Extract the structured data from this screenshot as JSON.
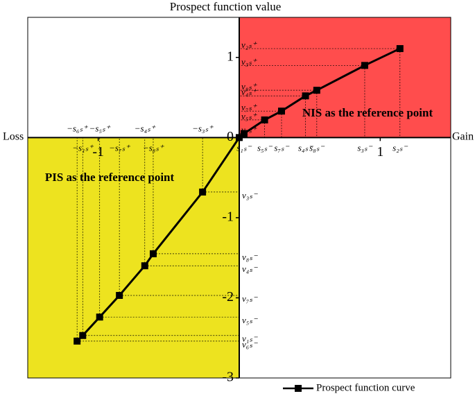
{
  "chart_data": {
    "type": "line",
    "title": "Prospect function value",
    "x_left_label": "Loss",
    "x_right_label": "Gain",
    "gain_region": {
      "text": "NIS as the reference point",
      "color": "#ff4d4d"
    },
    "loss_region": {
      "text": "PIS as the reference point",
      "color": "#ede31f"
    },
    "xlim": [
      -1.5,
      1.5
    ],
    "ylim": [
      -3,
      1.5
    ],
    "xticks": [
      -1,
      1
    ],
    "yticks": [
      -3,
      -2,
      -1,
      0,
      1
    ],
    "series": [
      {
        "name": "Prospect function curve",
        "color": "#000000",
        "x": [
          -1.15,
          -1.11,
          -0.99,
          -0.85,
          -0.67,
          -0.61,
          -0.26,
          0,
          0.034,
          0.18,
          0.3,
          0.47,
          0.55,
          0.89,
          1.14
        ],
        "values": [
          -2.54,
          -2.47,
          -2.24,
          -1.97,
          -1.6,
          -1.45,
          -0.68,
          0,
          0.05,
          0.22,
          0.33,
          0.52,
          0.59,
          0.9,
          1.11
        ],
        "x_labels": [
          "−s₆ₛ⁺",
          "−s₁ₛ⁺",
          "−s₅ₛ⁺",
          "−s₇ₛ⁺",
          "−s₄ₛ⁺",
          "−s₈ₛ⁺",
          "−s₃ₛ⁺",
          null,
          "s₁ₛ⁻",
          "s₅ₛ⁻",
          "s₇ₛ⁻",
          "s₄ₛ⁻",
          "s₈ₛ⁻",
          "s₃ₛ⁻",
          "s₂ₛ⁻"
        ],
        "y_labels": [
          "v₆ₛ⁻",
          "v₁ₛ⁻",
          "v₅ₛ⁻",
          "v₇ₛ⁻",
          "v₄ₛ⁻",
          "v₈ₛ⁻",
          "v₃ₛ⁻",
          null,
          "v₁ₛ⁺",
          "v₅ₛ⁺",
          "v₇ₛ⁺",
          "v₄ₛ⁺",
          "v₈ₛ⁺",
          "v₃ₛ⁺",
          "v₂ₛ⁺"
        ]
      }
    ]
  }
}
